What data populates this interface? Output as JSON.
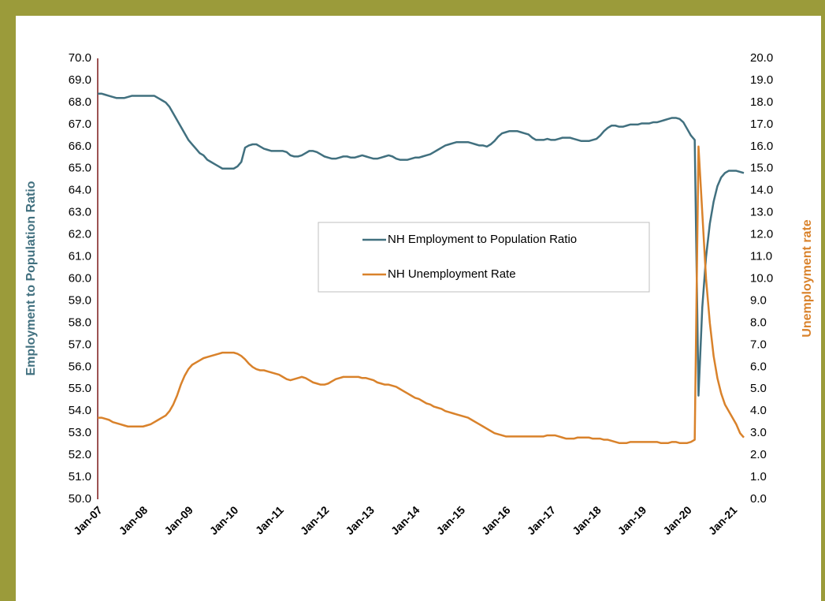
{
  "chart_data": {
    "type": "line",
    "y_label": "Employment to Population Ratio",
    "y2_label": "Unemployment rate",
    "categories": [
      "Jan-07",
      null,
      null,
      null,
      null,
      null,
      null,
      null,
      null,
      null,
      null,
      null,
      "Jan-08",
      null,
      null,
      null,
      null,
      null,
      null,
      null,
      null,
      null,
      null,
      null,
      "Jan-09",
      null,
      null,
      null,
      null,
      null,
      null,
      null,
      null,
      null,
      null,
      null,
      "Jan-10",
      null,
      null,
      null,
      null,
      null,
      null,
      null,
      null,
      null,
      null,
      null,
      "Jan-11",
      null,
      null,
      null,
      null,
      null,
      null,
      null,
      null,
      null,
      null,
      null,
      "Jan-12",
      null,
      null,
      null,
      null,
      null,
      null,
      null,
      null,
      null,
      null,
      null,
      "Jan-13",
      null,
      null,
      null,
      null,
      null,
      null,
      null,
      null,
      null,
      null,
      null,
      "Jan-14",
      null,
      null,
      null,
      null,
      null,
      null,
      null,
      null,
      null,
      null,
      null,
      "Jan-15",
      null,
      null,
      null,
      null,
      null,
      null,
      null,
      null,
      null,
      null,
      null,
      "Jan-16",
      null,
      null,
      null,
      null,
      null,
      null,
      null,
      null,
      null,
      null,
      null,
      "Jan-17",
      null,
      null,
      null,
      null,
      null,
      null,
      null,
      null,
      null,
      null,
      null,
      "Jan-18",
      null,
      null,
      null,
      null,
      null,
      null,
      null,
      null,
      null,
      null,
      null,
      "Jan-19",
      null,
      null,
      null,
      null,
      null,
      null,
      null,
      null,
      null,
      null,
      null,
      "Jan-20",
      null,
      null,
      null,
      null,
      null,
      null,
      null,
      null,
      null,
      null,
      null,
      "Jan-21",
      null,
      null,
      null
    ],
    "series": [
      {
        "name": "NH Employment to Population Ratio",
        "color": "#41707f",
        "axis": "y",
        "values": [
          68.4,
          68.4,
          68.35,
          68.3,
          68.25,
          68.2,
          68.2,
          68.2,
          68.25,
          68.3,
          68.3,
          68.3,
          68.3,
          68.3,
          68.3,
          68.3,
          68.2,
          68.1,
          68.0,
          67.8,
          67.5,
          67.2,
          66.9,
          66.6,
          66.3,
          66.1,
          65.9,
          65.7,
          65.6,
          65.4,
          65.3,
          65.2,
          65.1,
          65.0,
          65.0,
          65.0,
          65.0,
          65.1,
          65.3,
          65.95,
          66.05,
          66.1,
          66.1,
          66.0,
          65.9,
          65.85,
          65.8,
          65.8,
          65.8,
          65.8,
          65.75,
          65.6,
          65.55,
          65.55,
          65.6,
          65.7,
          65.8,
          65.8,
          65.75,
          65.65,
          65.55,
          65.5,
          65.45,
          65.45,
          65.5,
          65.55,
          65.55,
          65.5,
          65.5,
          65.55,
          65.6,
          65.55,
          65.5,
          65.45,
          65.45,
          65.5,
          65.55,
          65.6,
          65.55,
          65.45,
          65.4,
          65.4,
          65.4,
          65.45,
          65.5,
          65.5,
          65.55,
          65.6,
          65.65,
          65.75,
          65.85,
          65.95,
          66.05,
          66.1,
          66.15,
          66.2,
          66.2,
          66.2,
          66.2,
          66.15,
          66.1,
          66.05,
          66.05,
          66.0,
          66.1,
          66.25,
          66.45,
          66.6,
          66.65,
          66.7,
          66.7,
          66.7,
          66.65,
          66.6,
          66.55,
          66.4,
          66.3,
          66.3,
          66.3,
          66.35,
          66.3,
          66.3,
          66.35,
          66.4,
          66.4,
          66.4,
          66.35,
          66.3,
          66.25,
          66.25,
          66.25,
          66.3,
          66.35,
          66.5,
          66.7,
          66.85,
          66.95,
          66.95,
          66.9,
          66.9,
          66.95,
          67.0,
          67.0,
          67.0,
          67.05,
          67.05,
          67.05,
          67.1,
          67.1,
          67.15,
          67.2,
          67.25,
          67.3,
          67.3,
          67.25,
          67.1,
          66.8,
          66.5,
          66.3,
          54.7,
          58.7,
          61.0,
          62.5,
          63.5,
          64.2,
          64.6,
          64.8,
          64.9,
          64.9,
          64.9,
          64.85,
          64.8
        ]
      },
      {
        "name": "NH Unemployment Rate",
        "color": "#d9822b",
        "axis": "y2",
        "values": [
          3.7,
          3.7,
          3.65,
          3.6,
          3.5,
          3.45,
          3.4,
          3.35,
          3.3,
          3.3,
          3.3,
          3.3,
          3.3,
          3.35,
          3.4,
          3.5,
          3.6,
          3.7,
          3.8,
          4.0,
          4.3,
          4.7,
          5.2,
          5.6,
          5.9,
          6.1,
          6.2,
          6.3,
          6.4,
          6.45,
          6.5,
          6.55,
          6.6,
          6.65,
          6.65,
          6.65,
          6.65,
          6.6,
          6.5,
          6.35,
          6.15,
          6.0,
          5.9,
          5.85,
          5.85,
          5.8,
          5.75,
          5.7,
          5.65,
          5.55,
          5.45,
          5.4,
          5.45,
          5.5,
          5.55,
          5.5,
          5.4,
          5.3,
          5.25,
          5.2,
          5.2,
          5.25,
          5.35,
          5.45,
          5.5,
          5.55,
          5.55,
          5.55,
          5.55,
          5.55,
          5.5,
          5.5,
          5.45,
          5.4,
          5.3,
          5.25,
          5.2,
          5.2,
          5.15,
          5.1,
          5.0,
          4.9,
          4.8,
          4.7,
          4.6,
          4.55,
          4.45,
          4.35,
          4.3,
          4.2,
          4.15,
          4.1,
          4.0,
          3.95,
          3.9,
          3.85,
          3.8,
          3.75,
          3.7,
          3.6,
          3.5,
          3.4,
          3.3,
          3.2,
          3.1,
          3.0,
          2.95,
          2.9,
          2.85,
          2.85,
          2.85,
          2.85,
          2.85,
          2.85,
          2.85,
          2.85,
          2.85,
          2.85,
          2.85,
          2.9,
          2.9,
          2.9,
          2.85,
          2.8,
          2.75,
          2.75,
          2.75,
          2.8,
          2.8,
          2.8,
          2.8,
          2.75,
          2.75,
          2.75,
          2.7,
          2.7,
          2.65,
          2.6,
          2.55,
          2.55,
          2.55,
          2.6,
          2.6,
          2.6,
          2.6,
          2.6,
          2.6,
          2.6,
          2.6,
          2.55,
          2.55,
          2.55,
          2.6,
          2.6,
          2.55,
          2.55,
          2.55,
          2.6,
          2.7,
          16.0,
          13.0,
          10.0,
          8.0,
          6.5,
          5.5,
          4.8,
          4.3,
          4.0,
          3.7,
          3.4,
          3.0,
          2.8
        ]
      }
    ],
    "ylim": [
      50,
      70
    ],
    "yticks": [
      {
        "value": 50,
        "label": "50.0"
      },
      {
        "value": 51,
        "label": "51.0"
      },
      {
        "value": 52,
        "label": "52.0"
      },
      {
        "value": 53,
        "label": "53.0"
      },
      {
        "value": 54,
        "label": "54.0"
      },
      {
        "value": 55,
        "label": "55.0"
      },
      {
        "value": 56,
        "label": "56.0"
      },
      {
        "value": 57,
        "label": "57.0"
      },
      {
        "value": 58,
        "label": "58.0"
      },
      {
        "value": 59,
        "label": "59.0"
      },
      {
        "value": 60,
        "label": "60.0"
      },
      {
        "value": 61,
        "label": "61.0"
      },
      {
        "value": 62,
        "label": "62.0"
      },
      {
        "value": 63,
        "label": "63.0"
      },
      {
        "value": 64,
        "label": "64.0"
      },
      {
        "value": 65,
        "label": "65.0"
      },
      {
        "value": 66,
        "label": "66.0"
      },
      {
        "value": 67,
        "label": "67.0"
      },
      {
        "value": 68,
        "label": "68.0"
      },
      {
        "value": 69,
        "label": "69.0"
      },
      {
        "value": 70,
        "label": "70.0"
      }
    ],
    "y2lim": [
      0,
      20
    ],
    "y2ticks": [
      {
        "value": 0,
        "label": "0.0"
      },
      {
        "value": 1,
        "label": "1.0"
      },
      {
        "value": 2,
        "label": "2.0"
      },
      {
        "value": 3,
        "label": "3.0"
      },
      {
        "value": 4,
        "label": "4.0"
      },
      {
        "value": 5,
        "label": "5.0"
      },
      {
        "value": 6,
        "label": "6.0"
      },
      {
        "value": 7,
        "label": "7.0"
      },
      {
        "value": 8,
        "label": "8.0"
      },
      {
        "value": 9,
        "label": "9.0"
      },
      {
        "value": 10,
        "label": "10.0"
      },
      {
        "value": 11,
        "label": "11.0"
      },
      {
        "value": 12,
        "label": "12.0"
      },
      {
        "value": 13,
        "label": "13.0"
      },
      {
        "value": 14,
        "label": "14.0"
      },
      {
        "value": 15,
        "label": "15.0"
      },
      {
        "value": 16,
        "label": "16.0"
      },
      {
        "value": 17,
        "label": "17.0"
      },
      {
        "value": 18,
        "label": "18.0"
      },
      {
        "value": 19,
        "label": "19.0"
      },
      {
        "value": 20,
        "label": "20.0"
      }
    ]
  }
}
